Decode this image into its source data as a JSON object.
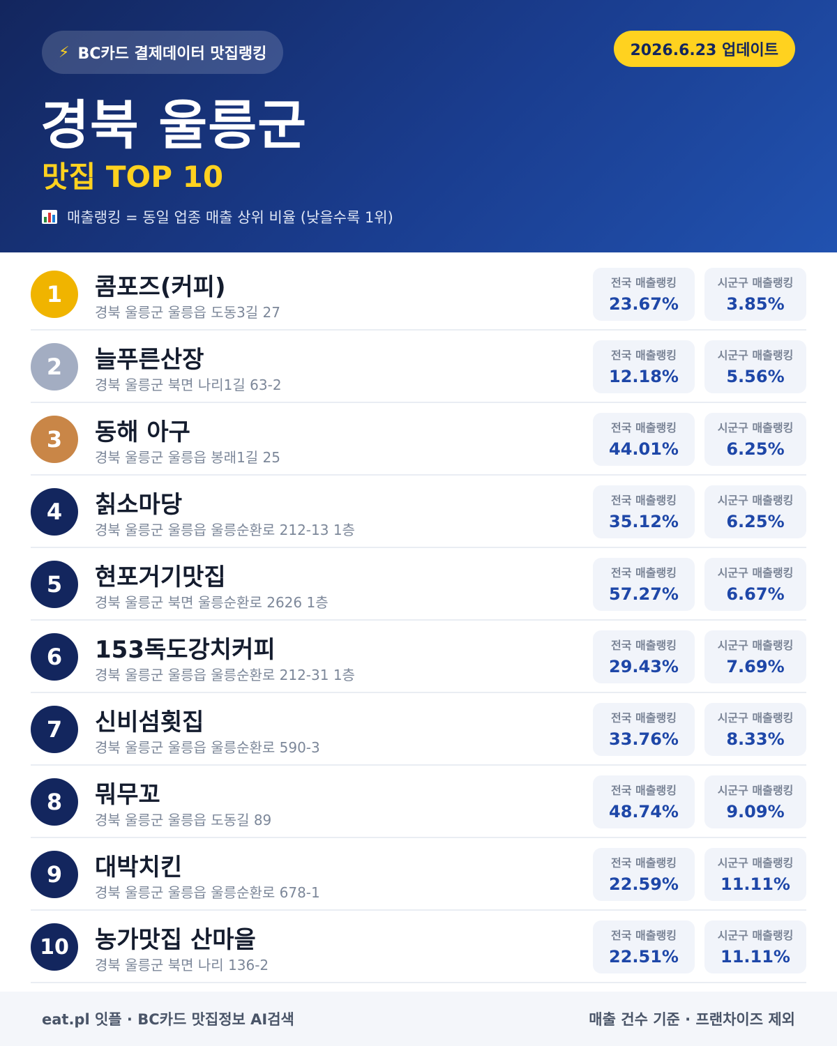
{
  "header": {
    "pill_icon": "lightning-icon",
    "pill_label": "BC카드 결제데이터 맛집랭킹",
    "update_label": "2026.6.23 업데이트",
    "region_title": "경북 울릉군",
    "subtitle": "맛집 TOP 10",
    "note_icon": "bar-chart-icon",
    "note": "매출랭킹 = 동일 업종 매출 상위 비율 (낮을수록 1위)"
  },
  "stat_labels": {
    "national": "전국 매출랭킹",
    "local": "시군구 매출랭킹"
  },
  "colors": {
    "gold": "#f0b400",
    "silver": "#a3adc2",
    "bronze": "#c98647",
    "navy": "#13265e",
    "accent_yellow": "#ffd21f",
    "value_blue": "#1e47a8"
  },
  "restaurants": [
    {
      "rank": "1",
      "name": "콤포즈(커피)",
      "address": "경북 울릉군 울릉읍 도동3길 27",
      "national": "23.67%",
      "local": "3.85%"
    },
    {
      "rank": "2",
      "name": "늘푸른산장",
      "address": "경북 울릉군 북면 나리1길 63-2",
      "national": "12.18%",
      "local": "5.56%"
    },
    {
      "rank": "3",
      "name": "동해 아구",
      "address": "경북 울릉군 울릉읍 봉래1길 25",
      "national": "44.01%",
      "local": "6.25%"
    },
    {
      "rank": "4",
      "name": "칡소마당",
      "address": "경북 울릉군 울릉읍 울릉순환로 212-13 1층",
      "national": "35.12%",
      "local": "6.25%"
    },
    {
      "rank": "5",
      "name": "현포거기맛집",
      "address": "경북 울릉군 북면 울릉순환로 2626 1층",
      "national": "57.27%",
      "local": "6.67%"
    },
    {
      "rank": "6",
      "name": "153독도강치커피",
      "address": "경북 울릉군 울릉읍 울릉순환로 212-31 1층",
      "national": "29.43%",
      "local": "7.69%"
    },
    {
      "rank": "7",
      "name": "신비섬횟집",
      "address": "경북 울릉군 울릉읍 울릉순환로 590-3",
      "national": "33.76%",
      "local": "8.33%"
    },
    {
      "rank": "8",
      "name": "뭐무꼬",
      "address": "경북 울릉군 울릉읍 도동길 89",
      "national": "48.74%",
      "local": "9.09%"
    },
    {
      "rank": "9",
      "name": "대박치킨",
      "address": "경북 울릉군 울릉읍 울릉순환로 678-1",
      "national": "22.59%",
      "local": "11.11%"
    },
    {
      "rank": "10",
      "name": "농가맛집 산마을",
      "address": "경북 울릉군 북면 나리 136-2",
      "national": "22.51%",
      "local": "11.11%"
    }
  ],
  "footer": {
    "left": "eat.pl 잇플 · BC카드 맛집정보 AI검색",
    "right": "매출 건수 기준 · 프랜차이즈 제외"
  }
}
